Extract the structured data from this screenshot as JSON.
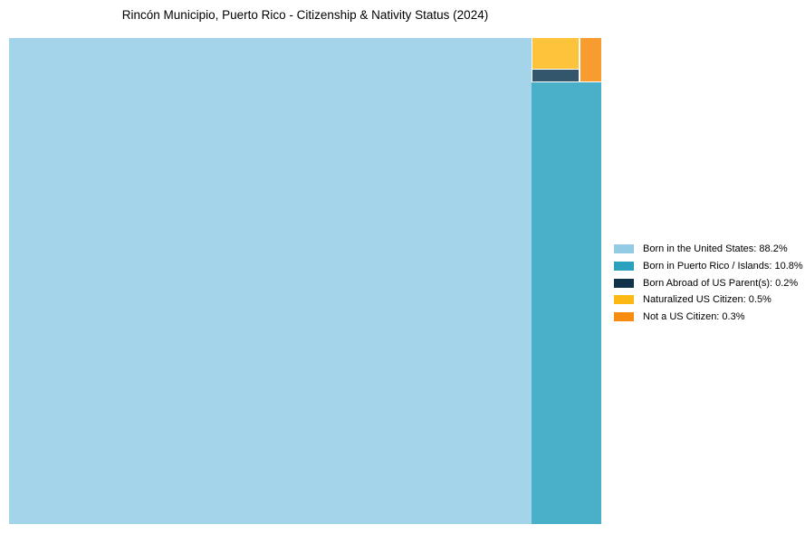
{
  "header": {
    "title": "Rincón Municipio, Puerto Rico - Citizenship & Nativity Status (2024)"
  },
  "chart_data": {
    "type": "treemap",
    "title": "Rincón Municipio, Puerto Rico - Citizenship & Nativity Status (2024)",
    "units": "%",
    "total_pct": 100.0,
    "legend_position": "right-center",
    "categories": [
      "Born in the United States",
      "Born in Puerto Rico / Islands",
      "Born Abroad of US Parent(s)",
      "Naturalized US Citizen",
      "Not a US Citizen"
    ],
    "values": [
      88.2,
      10.8,
      0.2,
      0.5,
      0.3
    ],
    "items": [
      {
        "label": "Born in the United States",
        "pct": 88.2,
        "tile_color": "#A4D4EA",
        "legend_color": "#92CBE3",
        "legend_text": "Born in the United States: 88.2%"
      },
      {
        "label": "Born in Puerto Rico / Islands",
        "pct": 10.8,
        "tile_color": "#4AAFC8",
        "legend_color": "#2BA0BF",
        "legend_text": "Born in Puerto Rico / Islands: 10.8%"
      },
      {
        "label": "Born Abroad of US Parent(s)",
        "pct": 0.2,
        "tile_color": "#33566C",
        "legend_color": "#11334A",
        "legend_text": "Born Abroad of US Parent(s): 0.2%"
      },
      {
        "label": "Naturalized US Citizen",
        "pct": 0.5,
        "tile_color": "#FDC43B",
        "legend_color": "#FCB814",
        "legend_text": "Naturalized US Citizen: 0.5%"
      },
      {
        "label": "Not a US Citizen",
        "pct": 0.3,
        "tile_color": "#F89C2F",
        "legend_color": "#F78D10",
        "legend_text": "Not a US Citizen: 0.3%"
      }
    ]
  }
}
